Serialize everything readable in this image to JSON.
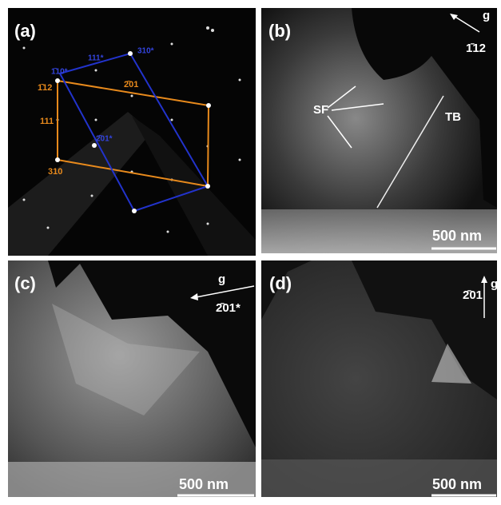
{
  "panels": [
    {
      "label": "(a)",
      "orange_labels": [
        "1̄12",
        "2̄01",
        "111",
        "310"
      ],
      "blue_labels": [
        "1̄10*",
        "111*",
        "310*",
        "2̄01*"
      ]
    },
    {
      "label": "(b)",
      "g": "g",
      "direction": "1̄12",
      "annotations": [
        "SF",
        "TB"
      ],
      "scale": "500 nm"
    },
    {
      "label": "(c)",
      "g": "g",
      "direction": "2̄01*",
      "scale": "500 nm"
    },
    {
      "label": "(d)",
      "g": "g",
      "direction": "2̄01",
      "scale": "500 nm"
    }
  ]
}
